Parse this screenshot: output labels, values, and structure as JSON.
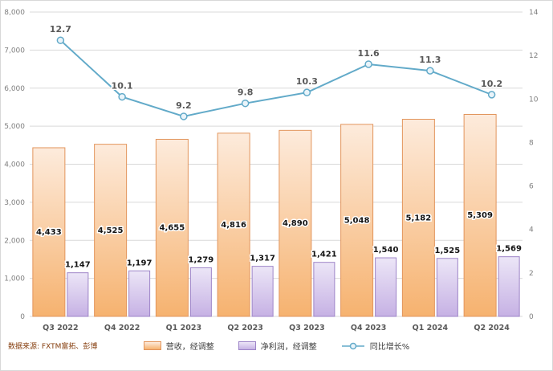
{
  "source_note": "数据来源: FXTM富拓、彭博",
  "colors": {
    "orange_light": "#fdebdc",
    "orange_dark": "#f6b26f",
    "orange_border": "#e2955c",
    "purple_light": "#ece6f7",
    "purple_dark": "#c6b1e4",
    "purple_border": "#9e85c8",
    "line": "#62aac9",
    "marker_fill": "#eaf4fa",
    "grid": "#d9d9d9",
    "axis_text": "#7f7f7f",
    "category_text": "#595959",
    "data_label": "#141414",
    "growth_label": "#595959",
    "source_text": "#843c0c"
  },
  "chart_data": {
    "type": "bar",
    "subtype": "grouped bars with secondary-axis line",
    "categories": [
      "Q3 2022",
      "Q4 2022",
      "Q1 2023",
      "Q2 2023",
      "Q3 2023",
      "Q4 2023",
      "Q1 2024",
      "Q2 2024"
    ],
    "series": [
      {
        "name": "营收，经调整",
        "type": "bar",
        "axis": "left",
        "values": [
          4433,
          4525,
          4655,
          4816,
          4890,
          5048,
          5182,
          5309
        ],
        "labels": [
          "4,433",
          "4,525",
          "4,655",
          "4,816",
          "4,890",
          "5,048",
          "5,182",
          "5,309"
        ]
      },
      {
        "name": "净利润，经调整",
        "type": "bar",
        "axis": "left",
        "values": [
          1147,
          1197,
          1279,
          1317,
          1421,
          1540,
          1525,
          1569
        ],
        "labels": [
          "1,147",
          "1,197",
          "1,279",
          "1,317",
          "1,421",
          "1,540",
          "1,525",
          "1,569"
        ]
      },
      {
        "name": "同比增长%",
        "type": "line",
        "axis": "right",
        "values": [
          12.7,
          10.1,
          9.2,
          9.8,
          10.3,
          11.6,
          11.3,
          10.2
        ],
        "labels": [
          "12.7",
          "10.1",
          "9.2",
          "9.8",
          "10.3",
          "11.6",
          "11.3",
          "10.2"
        ]
      }
    ],
    "left_axis": {
      "min": 0,
      "max": 8000,
      "step": 1000,
      "tick_labels": [
        "0",
        "1,000",
        "2,000",
        "3,000",
        "4,000",
        "5,000",
        "6,000",
        "7,000",
        "8,000"
      ]
    },
    "right_axis": {
      "min": 0,
      "max": 14,
      "step": 2,
      "tick_labels": [
        "0",
        "2",
        "4",
        "6",
        "8",
        "10",
        "12",
        "14"
      ]
    },
    "grid": true,
    "legend_position": "bottom"
  }
}
